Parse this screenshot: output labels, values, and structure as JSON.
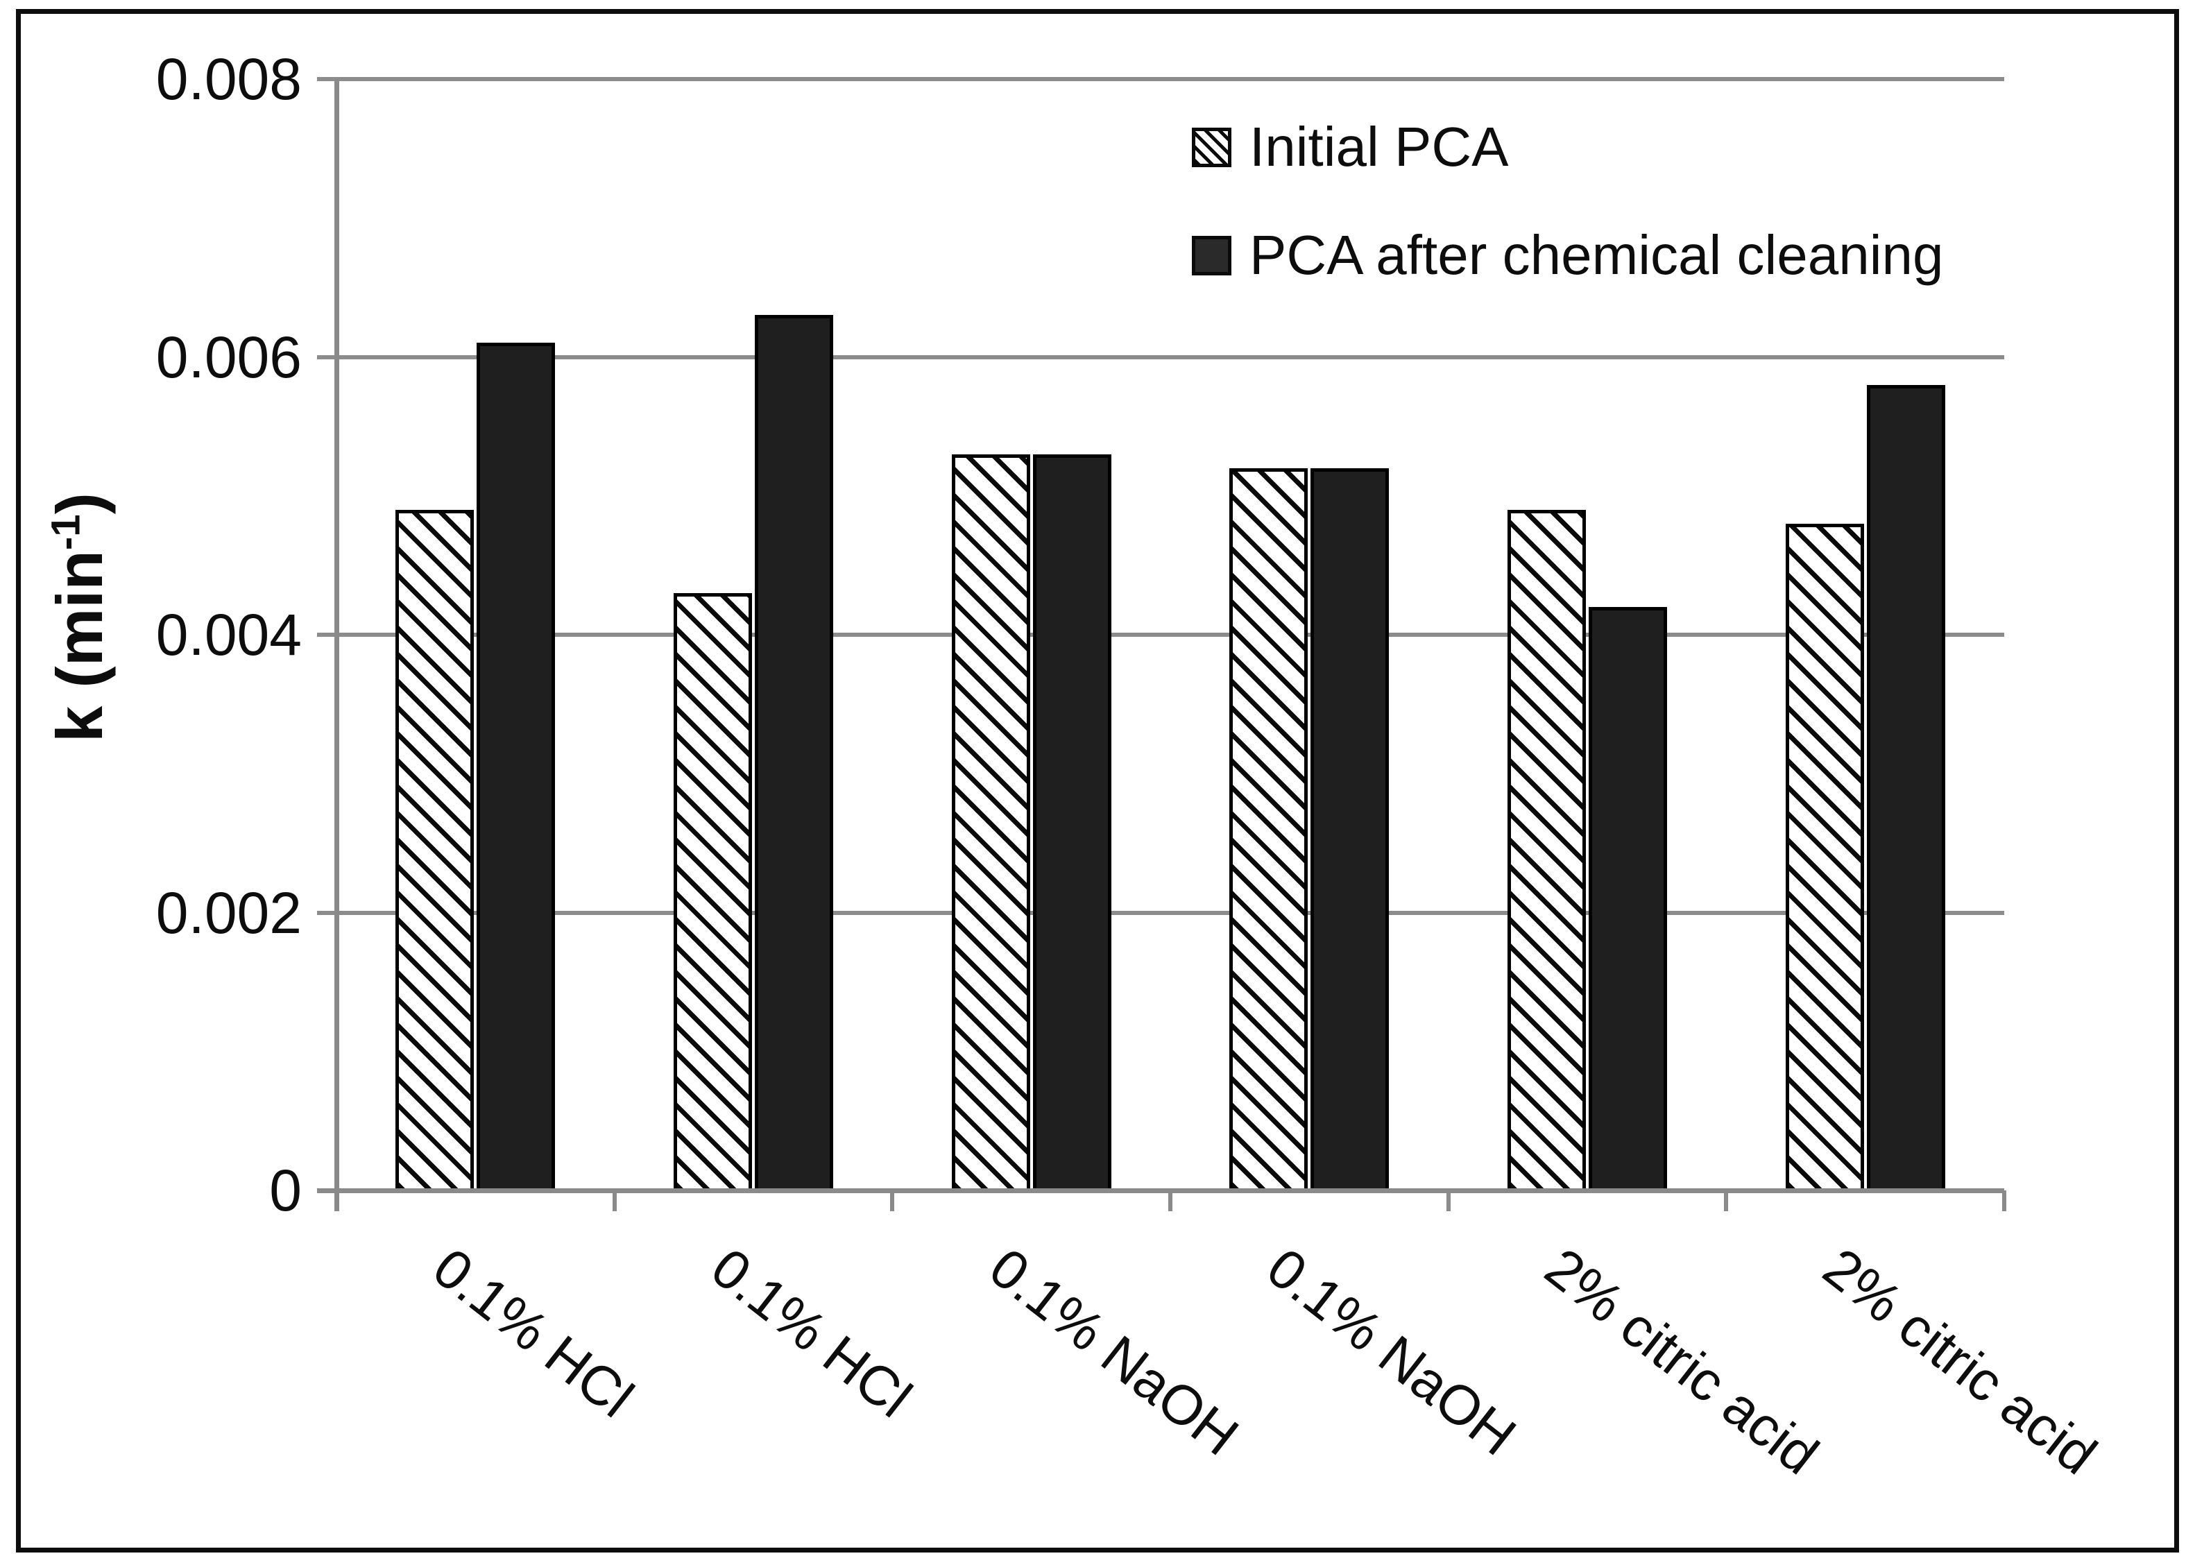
{
  "colors": {
    "background": "#ffffff",
    "frame": "#0d0d0d",
    "axis": "#8a8a8a",
    "grid": "#8c8c8c",
    "text": "#0d0d0d",
    "bar_solid_fill": "#1f1f1f",
    "bar_border": "#000000",
    "hatch_stripe": "#0a0a0a",
    "hatch_background": "#ffffff"
  },
  "chart_data": {
    "type": "bar",
    "title": "",
    "xlabel": "",
    "ylabel_prefix": "k (min",
    "ylabel_sup": "-1",
    "ylabel_suffix": ")",
    "categories": [
      "0.1% HCl",
      "0.1% HCl",
      "0.1% NaOH",
      "0.1% NaOH",
      "2% citric acid",
      "2% citric acid"
    ],
    "series": [
      {
        "name": "Initial PCA",
        "style": "white-with-black-diagonal-hatch",
        "values": [
          0.0049,
          0.0043,
          0.0053,
          0.0052,
          0.0049,
          0.0048
        ]
      },
      {
        "name": "PCA after chemical cleaning",
        "style": "solid-dark",
        "values": [
          0.0061,
          0.0063,
          0.0053,
          0.0052,
          0.0042,
          0.0058
        ]
      }
    ],
    "ylim": [
      0,
      0.008
    ],
    "yticks": [
      {
        "label": "0.008",
        "value": 0.008
      },
      {
        "label": "0.006",
        "value": 0.006
      },
      {
        "label": "0.004",
        "value": 0.004
      },
      {
        "label": "0.002",
        "value": 0.002
      },
      {
        "label": "0",
        "value": 0
      }
    ],
    "grid": true,
    "legend_position": "inside-top-right",
    "category_label_rotation_deg": 38
  }
}
